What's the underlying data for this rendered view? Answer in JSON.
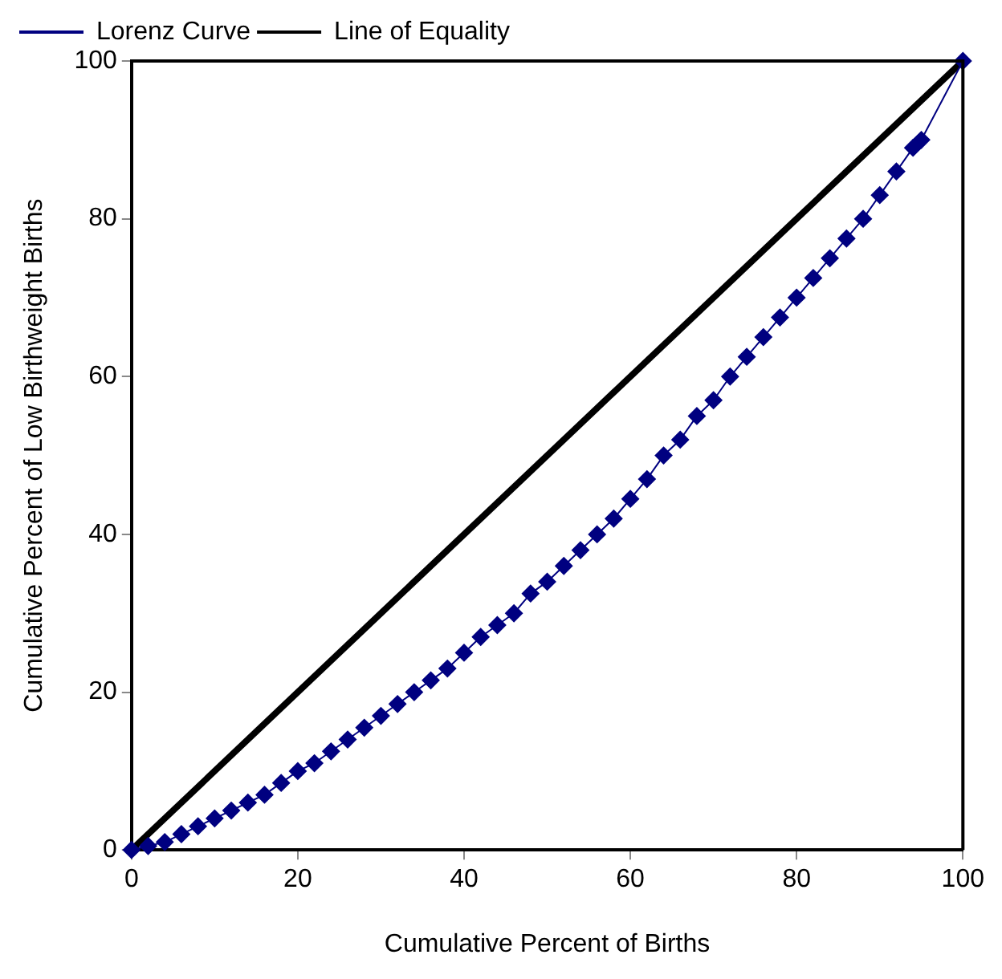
{
  "chart_data": {
    "type": "line",
    "xlabel": "Cumulative Percent of Births",
    "ylabel": "Cumulative Percent of Low Birthweight Births",
    "xlim": [
      0,
      100
    ],
    "ylim": [
      0,
      100
    ],
    "xticks": [
      0,
      20,
      40,
      60,
      80,
      100
    ],
    "yticks": [
      0,
      20,
      40,
      60,
      80,
      100
    ],
    "grid": false,
    "legend": "top left",
    "series": [
      {
        "name": "Lorenz Curve",
        "color": "#000080",
        "marker": "diamond",
        "x": [
          0,
          2,
          4,
          6,
          8,
          10,
          12,
          14,
          16,
          18,
          20,
          22,
          24,
          26,
          28,
          30,
          32,
          34,
          36,
          38,
          40,
          42,
          44,
          46,
          48,
          50,
          52,
          54,
          56,
          58,
          60,
          62,
          64,
          66,
          68,
          70,
          72,
          74,
          76,
          78,
          80,
          82,
          84,
          86,
          88,
          90,
          92,
          94,
          95,
          100
        ],
        "values": [
          0,
          0.5,
          1,
          2,
          3,
          4,
          5,
          6,
          7,
          8.5,
          10,
          11,
          12.5,
          14,
          15.5,
          17,
          18.5,
          20,
          21.5,
          23,
          25,
          27,
          28.5,
          30,
          32.5,
          34,
          36,
          38,
          40,
          42,
          44.5,
          47,
          50,
          52,
          55,
          57,
          60,
          62.5,
          65,
          67.5,
          70,
          72.5,
          75,
          77.5,
          80,
          83,
          86,
          89,
          90,
          100
        ]
      },
      {
        "name": "Line of Equality",
        "color": "#000000",
        "marker": "none",
        "x": [
          0,
          100
        ],
        "values": [
          0,
          100
        ]
      }
    ]
  }
}
